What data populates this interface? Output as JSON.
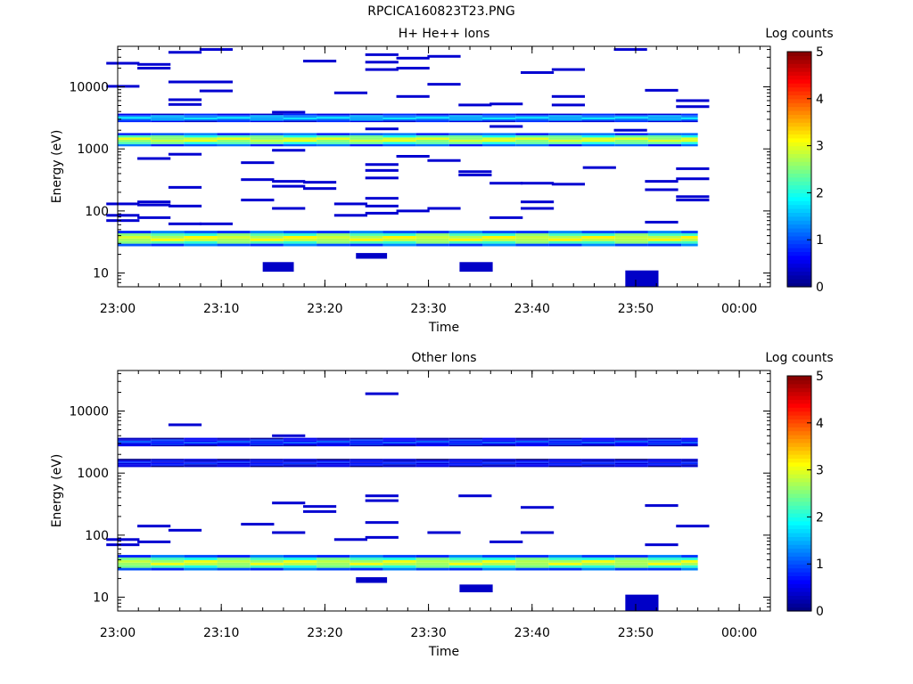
{
  "figure_title": "RPCICA160823T23.PNG",
  "chart_data": [
    {
      "type": "heatmap",
      "title": "H+ He++ Ions",
      "xlabel": "Time",
      "ylabel": "Energy (eV)",
      "y_scale": "log",
      "y_range_eV": [
        6,
        45000
      ],
      "x_range": [
        "23:00",
        "00:03"
      ],
      "x_ticks": [
        "23:00",
        "23:10",
        "23:20",
        "23:30",
        "23:40",
        "23:50",
        "00:00"
      ],
      "y_ticks": [
        "10",
        "100",
        "1000",
        "10000"
      ],
      "colorbar": {
        "label": "Log counts",
        "range": [
          0,
          5
        ],
        "ticks": [
          "0",
          "1",
          "2",
          "3",
          "4",
          "5"
        ]
      },
      "dense_bands": [
        {
          "e_low": 27,
          "e_high": 48,
          "t_start": "23:00",
          "t_end": "23:56",
          "log_counts": 3.0
        },
        {
          "e_low": 1100,
          "e_high": 1800,
          "t_start": "23:00",
          "t_end": "23:56",
          "log_counts": 2.9
        },
        {
          "e_low": 2700,
          "e_high": 3700,
          "t_start": "23:00",
          "t_end": "23:56",
          "log_counts": 1.6
        }
      ],
      "sparse_lines": [
        {
          "t": 0.5,
          "e": 24000
        },
        {
          "t": 0.5,
          "e": 10200
        },
        {
          "t": 3.5,
          "e": 23000
        },
        {
          "t": 3.5,
          "e": 20000
        },
        {
          "t": 6.5,
          "e": 36000
        },
        {
          "t": 6.5,
          "e": 12000
        },
        {
          "t": 6.5,
          "e": 6200
        },
        {
          "t": 6.5,
          "e": 5200
        },
        {
          "t": 9.5,
          "e": 40000
        },
        {
          "t": 9.5,
          "e": 12000
        },
        {
          "t": 9.5,
          "e": 8600
        },
        {
          "t": 19.5,
          "e": 26000
        },
        {
          "t": 16.5,
          "e": 3900
        },
        {
          "t": 22.5,
          "e": 8000
        },
        {
          "t": 25.5,
          "e": 33000
        },
        {
          "t": 25.5,
          "e": 25000
        },
        {
          "t": 25.5,
          "e": 19000
        },
        {
          "t": 28.5,
          "e": 29000
        },
        {
          "t": 28.5,
          "e": 20000
        },
        {
          "t": 28.5,
          "e": 7000
        },
        {
          "t": 31.5,
          "e": 31000
        },
        {
          "t": 31.5,
          "e": 11000
        },
        {
          "t": 34.5,
          "e": 5100
        },
        {
          "t": 37.5,
          "e": 5300
        },
        {
          "t": 40.5,
          "e": 17000
        },
        {
          "t": 43.5,
          "e": 19000
        },
        {
          "t": 43.5,
          "e": 7000
        },
        {
          "t": 43.5,
          "e": 5100
        },
        {
          "t": 49.5,
          "e": 40000
        },
        {
          "t": 52.5,
          "e": 8800
        },
        {
          "t": 55.5,
          "e": 6000
        },
        {
          "t": 55.5,
          "e": 4800
        },
        {
          "t": 3.5,
          "e": 700
        },
        {
          "t": 6.5,
          "e": 820
        },
        {
          "t": 6.5,
          "e": 240
        },
        {
          "t": 13.5,
          "e": 600
        },
        {
          "t": 13.5,
          "e": 320
        },
        {
          "t": 16.5,
          "e": 950
        },
        {
          "t": 16.5,
          "e": 300
        },
        {
          "t": 16.5,
          "e": 250
        },
        {
          "t": 19.5,
          "e": 290
        },
        {
          "t": 19.5,
          "e": 230
        },
        {
          "t": 25.5,
          "e": 560
        },
        {
          "t": 25.5,
          "e": 450
        },
        {
          "t": 25.5,
          "e": 340
        },
        {
          "t": 28.5,
          "e": 760
        },
        {
          "t": 31.5,
          "e": 650
        },
        {
          "t": 34.5,
          "e": 430
        },
        {
          "t": 34.5,
          "e": 380
        },
        {
          "t": 37.5,
          "e": 280
        },
        {
          "t": 40.5,
          "e": 280
        },
        {
          "t": 43.5,
          "e": 270
        },
        {
          "t": 46.5,
          "e": 500
        },
        {
          "t": 52.5,
          "e": 300
        },
        {
          "t": 52.5,
          "e": 220
        },
        {
          "t": 55.5,
          "e": 480
        },
        {
          "t": 55.5,
          "e": 330
        },
        {
          "t": 55.5,
          "e": 170
        },
        {
          "t": 55.5,
          "e": 150
        },
        {
          "t": 0.5,
          "e": 130
        },
        {
          "t": 0.5,
          "e": 85
        },
        {
          "t": 0.5,
          "e": 70
        },
        {
          "t": 3.5,
          "e": 140
        },
        {
          "t": 3.5,
          "e": 125
        },
        {
          "t": 3.5,
          "e": 78
        },
        {
          "t": 6.5,
          "e": 120
        },
        {
          "t": 6.5,
          "e": 62
        },
        {
          "t": 9.5,
          "e": 62
        },
        {
          "t": 13.5,
          "e": 150
        },
        {
          "t": 16.5,
          "e": 110
        },
        {
          "t": 22.5,
          "e": 130
        },
        {
          "t": 22.5,
          "e": 85
        },
        {
          "t": 25.5,
          "e": 160
        },
        {
          "t": 25.5,
          "e": 120
        },
        {
          "t": 25.5,
          "e": 92
        },
        {
          "t": 28.5,
          "e": 100
        },
        {
          "t": 31.5,
          "e": 110
        },
        {
          "t": 37.5,
          "e": 78
        },
        {
          "t": 40.5,
          "e": 140
        },
        {
          "t": 40.5,
          "e": 110
        },
        {
          "t": 52.5,
          "e": 66
        },
        {
          "t": 25.5,
          "e": 2100
        },
        {
          "t": 37.5,
          "e": 2300
        },
        {
          "t": 49.5,
          "e": 2000
        }
      ],
      "low_blocks": [
        {
          "t0": 14,
          "t1": 17,
          "e_low": 10.5,
          "e_high": 15
        },
        {
          "t0": 23,
          "t1": 26,
          "e_low": 17,
          "e_high": 21
        },
        {
          "t0": 33,
          "t1": 36.2,
          "e_low": 10.5,
          "e_high": 15
        },
        {
          "t0": 49,
          "t1": 52.2,
          "e_low": 6,
          "e_high": 11
        }
      ]
    },
    {
      "type": "heatmap",
      "title": "Other Ions",
      "xlabel": "Time",
      "ylabel": "Energy (eV)",
      "y_scale": "log",
      "y_range_eV": [
        6,
        45000
      ],
      "x_range": [
        "23:00",
        "00:03"
      ],
      "x_ticks": [
        "23:00",
        "23:10",
        "23:20",
        "23:30",
        "23:40",
        "23:50",
        "00:00"
      ],
      "y_ticks": [
        "10",
        "100",
        "1000",
        "10000"
      ],
      "colorbar": {
        "label": "Log counts",
        "range": [
          0,
          5
        ],
        "ticks": [
          "0",
          "1",
          "2",
          "3",
          "4",
          "5"
        ]
      },
      "dense_bands": [
        {
          "e_low": 27,
          "e_high": 48,
          "t_start": "23:00",
          "t_end": "23:56",
          "log_counts": 2.9
        },
        {
          "e_low": 1250,
          "e_high": 1700,
          "t_start": "23:00",
          "t_end": "23:56",
          "log_counts": 0.7
        },
        {
          "e_low": 2700,
          "e_high": 3700,
          "t_start": "23:00",
          "t_end": "23:56",
          "log_counts": 0.9
        }
      ],
      "sparse_lines": [
        {
          "t": 6.5,
          "e": 6000
        },
        {
          "t": 16.5,
          "e": 4000
        },
        {
          "t": 25.5,
          "e": 19000
        },
        {
          "t": 16.5,
          "e": 330
        },
        {
          "t": 19.5,
          "e": 290
        },
        {
          "t": 19.5,
          "e": 240
        },
        {
          "t": 25.5,
          "e": 430
        },
        {
          "t": 25.5,
          "e": 360
        },
        {
          "t": 34.5,
          "e": 430
        },
        {
          "t": 40.5,
          "e": 280
        },
        {
          "t": 52.5,
          "e": 300
        },
        {
          "t": 0.5,
          "e": 85
        },
        {
          "t": 0.5,
          "e": 70
        },
        {
          "t": 3.5,
          "e": 140
        },
        {
          "t": 3.5,
          "e": 78
        },
        {
          "t": 6.5,
          "e": 120
        },
        {
          "t": 13.5,
          "e": 150
        },
        {
          "t": 16.5,
          "e": 110
        },
        {
          "t": 22.5,
          "e": 85
        },
        {
          "t": 25.5,
          "e": 160
        },
        {
          "t": 25.5,
          "e": 92
        },
        {
          "t": 31.5,
          "e": 110
        },
        {
          "t": 37.5,
          "e": 78
        },
        {
          "t": 40.5,
          "e": 110
        },
        {
          "t": 52.5,
          "e": 70
        },
        {
          "t": 55.5,
          "e": 140
        }
      ],
      "low_blocks": [
        {
          "t0": 23,
          "t1": 26,
          "e_low": 17,
          "e_high": 21
        },
        {
          "t0": 33,
          "t1": 36.2,
          "e_low": 12,
          "e_high": 16
        },
        {
          "t0": 49,
          "t1": 52.2,
          "e_low": 6,
          "e_high": 11
        }
      ]
    }
  ]
}
